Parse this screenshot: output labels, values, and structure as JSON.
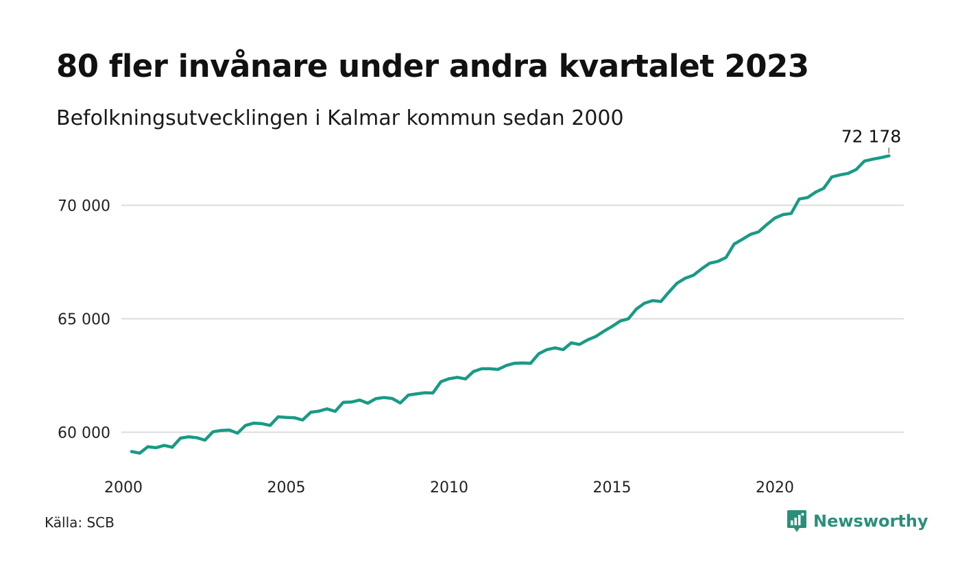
{
  "title": "80 fler invånare under andra kvartalet 2023",
  "subtitle": "Befolkningsutvecklingen i Kalmar kommun sedan 2000",
  "source": "Källa: SCB",
  "brand": {
    "name": "Newsworthy",
    "color": "#2a8f7a",
    "icon": "chart-bubble-icon"
  },
  "colors": {
    "line": "#1a9a85",
    "grid": "#dcdcdc"
  },
  "chart_data": {
    "type": "line",
    "title": "80 fler invånare under andra kvartalet 2023",
    "subtitle": "Befolkningsutvecklingen i Kalmar kommun sedan 2000",
    "xlabel": "",
    "ylabel": "",
    "xlim": [
      2000,
      2024
    ],
    "ylim": [
      58500,
      72400
    ],
    "grid": true,
    "x_ticks": [
      {
        "value": 2000,
        "label": "2000"
      },
      {
        "value": 2005,
        "label": "2005"
      },
      {
        "value": 2010,
        "label": "2010"
      },
      {
        "value": 2015,
        "label": "2015"
      },
      {
        "value": 2020,
        "label": "2020"
      }
    ],
    "y_ticks": [
      {
        "value": 60000,
        "label": "60 000"
      },
      {
        "value": 65000,
        "label": "65 000"
      },
      {
        "value": 70000,
        "label": "70 000"
      }
    ],
    "end_label": "72 178",
    "series": [
      {
        "start_year": 2000,
        "period": "quarter",
        "values": [
          59150,
          59080,
          59360,
          59320,
          59420,
          59340,
          59740,
          59800,
          59760,
          59650,
          60020,
          60080,
          60100,
          59960,
          60300,
          60400,
          60380,
          60300,
          60680,
          60650,
          60640,
          60540,
          60880,
          60930,
          61030,
          60920,
          61320,
          61330,
          61420,
          61280,
          61480,
          61530,
          61490,
          61290,
          61640,
          61690,
          61740,
          61730,
          62230,
          62360,
          62420,
          62350,
          62680,
          62800,
          62800,
          62770,
          62940,
          63040,
          63050,
          63040,
          63460,
          63640,
          63720,
          63640,
          63940,
          63870,
          64070,
          64220,
          64450,
          64660,
          64900,
          65000,
          65430,
          65690,
          65800,
          65760,
          66180,
          66570,
          66790,
          66920,
          67200,
          67450,
          67530,
          67700,
          68290,
          68500,
          68720,
          68830,
          69150,
          69440,
          69590,
          69640,
          70280,
          70340,
          70580,
          70750,
          71250,
          71340,
          71410,
          71580,
          71950,
          72030,
          72100,
          72178
        ]
      }
    ]
  }
}
